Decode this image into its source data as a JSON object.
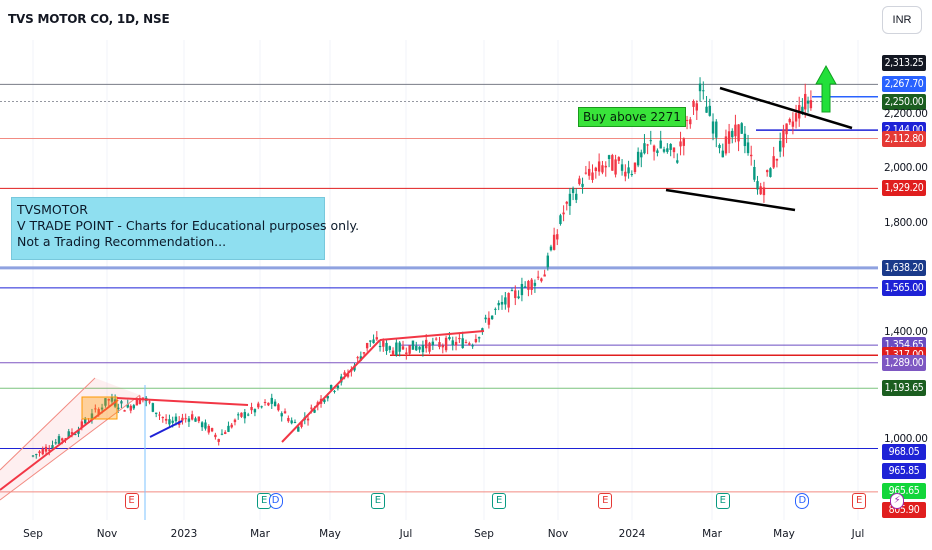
{
  "header": {
    "title": "TVS MOTOR CO, 1D, NSE",
    "currency": "INR"
  },
  "annotations": {
    "note_lines": [
      "TVSMOTOR",
      "V TRADE POINT - Charts for Educational purposes only.",
      "Not a Trading Recommendation..."
    ],
    "buy_label": "Buy above 2271"
  },
  "chart_data": {
    "type": "candlestick",
    "symbol": "TVS MOTOR CO",
    "interval": "1D",
    "exchange": "NSE",
    "currency": "INR",
    "x_tick_labels": [
      "Sep",
      "Nov",
      "2023",
      "Mar",
      "May",
      "Jul",
      "Sep",
      "Nov",
      "2024",
      "Mar",
      "May",
      "Jul"
    ],
    "y_tick_labels": [
      "2,200.00",
      "2,000.00",
      "1,800.00",
      "1,400.00",
      "1,000.00"
    ],
    "y_ticks": [
      2200,
      2000,
      1800,
      1400,
      1000
    ],
    "ylim": [
      760,
      2400
    ],
    "price_path": [
      {
        "month": 0.0,
        "price": 940
      },
      {
        "month": 1.2,
        "price": 1040
      },
      {
        "month": 2.0,
        "price": 1150
      },
      {
        "month": 2.5,
        "price": 1120
      },
      {
        "month": 2.9,
        "price": 1160
      },
      {
        "month": 3.6,
        "price": 1060
      },
      {
        "month": 4.2,
        "price": 1090
      },
      {
        "month": 4.9,
        "price": 1010
      },
      {
        "month": 5.5,
        "price": 1090
      },
      {
        "month": 6.3,
        "price": 1140
      },
      {
        "month": 7.0,
        "price": 1050
      },
      {
        "month": 7.6,
        "price": 1150
      },
      {
        "month": 8.4,
        "price": 1260
      },
      {
        "month": 8.9,
        "price": 1370
      },
      {
        "month": 9.5,
        "price": 1340
      },
      {
        "month": 10.2,
        "price": 1350
      },
      {
        "month": 10.9,
        "price": 1360
      },
      {
        "month": 11.6,
        "price": 1370
      },
      {
        "month": 12.2,
        "price": 1480
      },
      {
        "month": 12.9,
        "price": 1560
      },
      {
        "month": 13.5,
        "price": 1620
      },
      {
        "month": 14.0,
        "price": 1840
      },
      {
        "month": 14.5,
        "price": 1960
      },
      {
        "month": 15.2,
        "price": 2020
      },
      {
        "month": 15.8,
        "price": 2000
      },
      {
        "month": 16.3,
        "price": 2090
      },
      {
        "month": 17.0,
        "price": 2050
      },
      {
        "month": 17.6,
        "price": 2290
      },
      {
        "month": 18.2,
        "price": 2080
      },
      {
        "month": 18.7,
        "price": 2150
      },
      {
        "month": 19.2,
        "price": 1910
      },
      {
        "month": 19.8,
        "price": 2110
      },
      {
        "month": 20.3,
        "price": 2240
      },
      {
        "month": 20.6,
        "price": 2260
      }
    ],
    "price_levels": [
      {
        "price": 2313.25,
        "label": "2,313.25",
        "bg": "#131722",
        "line": "#787b86"
      },
      {
        "price": 2267.7,
        "label": "2,267.70",
        "bg": "#2962ff",
        "line": "#2962ff"
      },
      {
        "price": 2250.0,
        "label": "2,250.00",
        "bg": "#1b5e20",
        "line": "#9598a1"
      },
      {
        "price": 2144.0,
        "label": "2,144.00",
        "bg": "#1e22d6",
        "line": "#1e22d6"
      },
      {
        "price": 2112.8,
        "label": "2,112.80",
        "bg": "#e53935",
        "line": "#f28b82"
      },
      {
        "price": 1929.2,
        "label": "1,929.20",
        "bg": "#e01e1e",
        "line": "#e01e1e"
      },
      {
        "price": 1638.2,
        "label": "1,638.20",
        "bg": "#1a3a8a",
        "line": "#8fa2e0"
      },
      {
        "price": 1565.0,
        "label": "1,565.00",
        "bg": "#1e22d6",
        "line": "#1e22d6"
      },
      {
        "price": 1354.65,
        "label": "1,354.65",
        "bg": "#6a4cc2",
        "line": "#6a4cc2"
      },
      {
        "price": 1317.0,
        "label": "1,317.00",
        "bg": "#e01e1e",
        "line": "#e01e1e"
      },
      {
        "price": 1289.0,
        "label": "1,289.00",
        "bg": "#7e57c2",
        "line": "#7e57c2"
      },
      {
        "price": 1193.65,
        "label": "1,193.65",
        "bg": "#1b5e20",
        "line": "#7cc47f"
      },
      {
        "price": 968.05,
        "label": "968.05",
        "bg": "#1e22d6",
        "line": "#1e22d6"
      },
      {
        "price": 965.85,
        "label": "965.85",
        "bg": "#1e22d6",
        "line": "none"
      },
      {
        "price": 965.65,
        "label": "965.65",
        "bg": "#12d63a",
        "line": "none"
      },
      {
        "price": 805.9,
        "label": "805.90",
        "bg": "#e01e1e",
        "line": "#f28b82"
      }
    ],
    "events": [
      {
        "month": 2.6,
        "symbol": "E",
        "color": "#e53935"
      },
      {
        "month": 6.1,
        "symbol": "E",
        "color": "#089981"
      },
      {
        "month": 6.4,
        "symbol": "D",
        "color": "#2962ff"
      },
      {
        "month": 9.1,
        "symbol": "E",
        "color": "#089981"
      },
      {
        "month": 12.3,
        "symbol": "E",
        "color": "#089981"
      },
      {
        "month": 15.1,
        "symbol": "E",
        "color": "#e53935"
      },
      {
        "month": 18.2,
        "symbol": "E",
        "color": "#089981"
      },
      {
        "month": 20.3,
        "symbol": "D",
        "color": "#2962ff"
      },
      {
        "month": 21.8,
        "symbol": "E",
        "color": "#e53935"
      },
      {
        "month": 22.8,
        "symbol": "⚡",
        "color": "#9c27b0"
      }
    ]
  }
}
